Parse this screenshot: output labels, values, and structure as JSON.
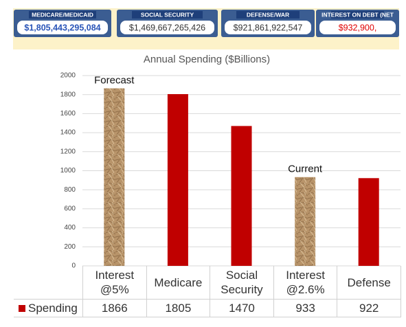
{
  "banner": [
    {
      "label": "MEDICARE/MEDICAID",
      "amount": "$1,805,443,295,084"
    },
    {
      "label": "SOCIAL SECURITY",
      "amount": "$1,469,667,265,426"
    },
    {
      "label": "DEFENSE/WAR",
      "amount": "$921,861,922,547"
    },
    {
      "label": "INTEREST ON DEBT (NET",
      "amount": "$932,900,"
    }
  ],
  "chart_data": {
    "type": "bar",
    "title": "Annual Spending ($Billions)",
    "categories": [
      "Interest @5%",
      "Medicare",
      "Social Security",
      "Interest @2.6%",
      "Defense"
    ],
    "series": [
      {
        "name": "Spending",
        "color": "#c00000",
        "values": [
          1866,
          1805,
          1470,
          933,
          922
        ]
      }
    ],
    "colors": [
      "#b8946a",
      "#c00000",
      "#c00000",
      "#b8946a",
      "#c00000"
    ],
    "annotations": [
      "Forecast",
      "Current"
    ],
    "ylim": [
      0,
      2000
    ],
    "yticks": [
      0,
      200,
      400,
      600,
      800,
      1000,
      1200,
      1400,
      1600,
      1800,
      2000
    ],
    "grid": true
  }
}
